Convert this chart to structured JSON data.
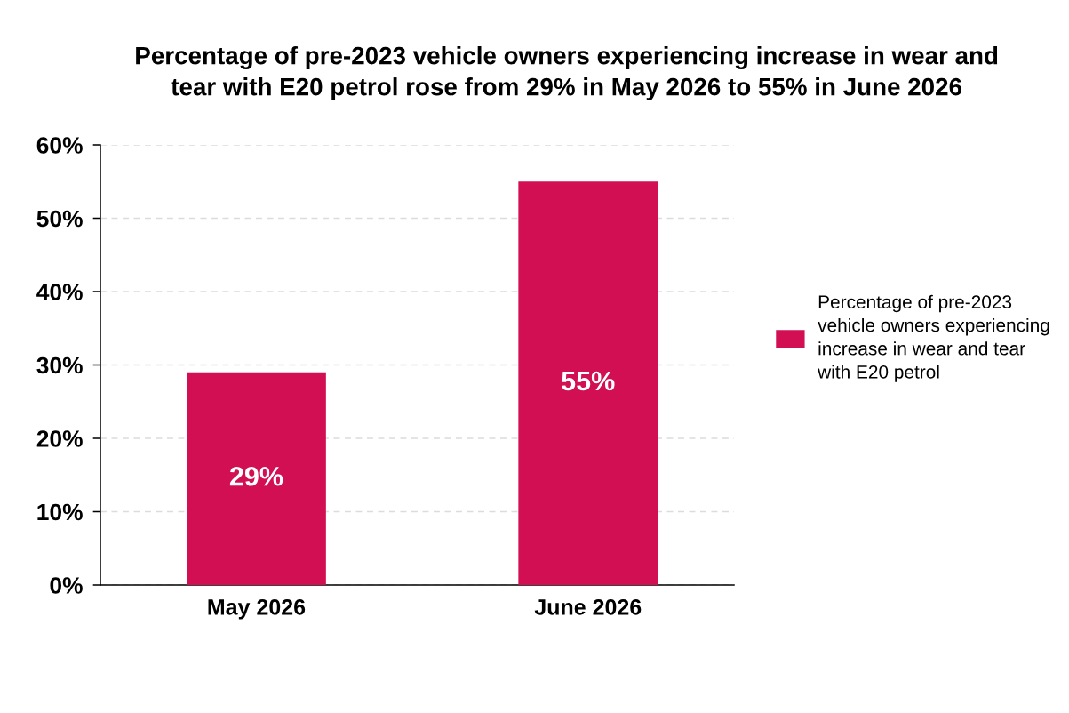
{
  "chart_data": {
    "type": "bar",
    "title": "Percentage of pre-2023 vehicle owners experiencing increase in wear and tear with E20 petrol rose from 29% in May 2026 to 55% in June 2026",
    "categories": [
      "May 2026",
      "June 2026"
    ],
    "series": [
      {
        "name": "Percentage of pre-2023 vehicle owners experiencing increase in wear and tear with E20 petrol",
        "color": "#d10f52",
        "values": [
          29,
          55
        ],
        "value_labels": [
          "29%",
          "55%"
        ]
      }
    ],
    "ylim": [
      0,
      60
    ],
    "yticks": [
      {
        "value": 0,
        "label": "0%"
      },
      {
        "value": 10,
        "label": "10%"
      },
      {
        "value": 20,
        "label": "20%"
      },
      {
        "value": 30,
        "label": "30%"
      },
      {
        "value": 40,
        "label": "40%"
      },
      {
        "value": 50,
        "label": "50%"
      },
      {
        "value": 60,
        "label": "60%"
      }
    ],
    "grid": "y",
    "legend": "right"
  }
}
